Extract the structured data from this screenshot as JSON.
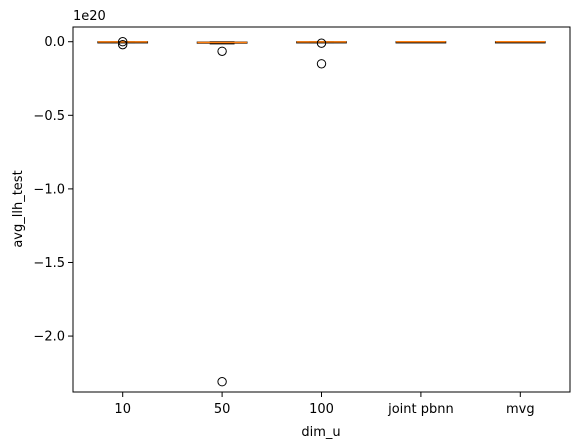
{
  "chart_data": {
    "type": "box",
    "xlabel": "dim_u",
    "ylabel": "avg_llh_test",
    "offset_label": "1e20",
    "categories": [
      "10",
      "50",
      "100",
      "joint pbnn",
      "mvg"
    ],
    "ylim": [
      -2.38,
      0.1
    ],
    "yticks": [
      {
        "value": 0.0,
        "label": "0.0"
      },
      {
        "value": -0.5,
        "label": "−0.5"
      },
      {
        "value": -1.0,
        "label": "−1.0"
      },
      {
        "value": -1.5,
        "label": "−1.5"
      },
      {
        "value": -2.0,
        "label": "−2.0"
      }
    ],
    "box_color": "#000000",
    "median_color": "#ff7f0e",
    "boxes": [
      {
        "category": "10",
        "q1": -0.003,
        "median": -0.001,
        "q3": 0.0,
        "whisker_low": -0.006,
        "whisker_high": 0.0,
        "outliers": [
          0.0,
          -0.02
        ]
      },
      {
        "category": "50",
        "q1": -0.01,
        "median": -0.005,
        "q3": -0.002,
        "whisker_low": -0.015,
        "whisker_high": 0.0,
        "outliers": [
          -0.065,
          -2.31
        ]
      },
      {
        "category": "100",
        "q1": -0.003,
        "median": -0.001,
        "q3": 0.0,
        "whisker_low": -0.006,
        "whisker_high": 0.0,
        "outliers": [
          -0.01,
          -0.15
        ]
      },
      {
        "category": "joint pbnn",
        "q1": -0.001,
        "median": -0.0005,
        "q3": 0.0,
        "whisker_low": -0.002,
        "whisker_high": 0.0,
        "outliers": []
      },
      {
        "category": "mvg",
        "q1": -0.001,
        "median": -0.0005,
        "q3": 0.0,
        "whisker_low": -0.002,
        "whisker_high": 0.0,
        "outliers": []
      }
    ]
  }
}
